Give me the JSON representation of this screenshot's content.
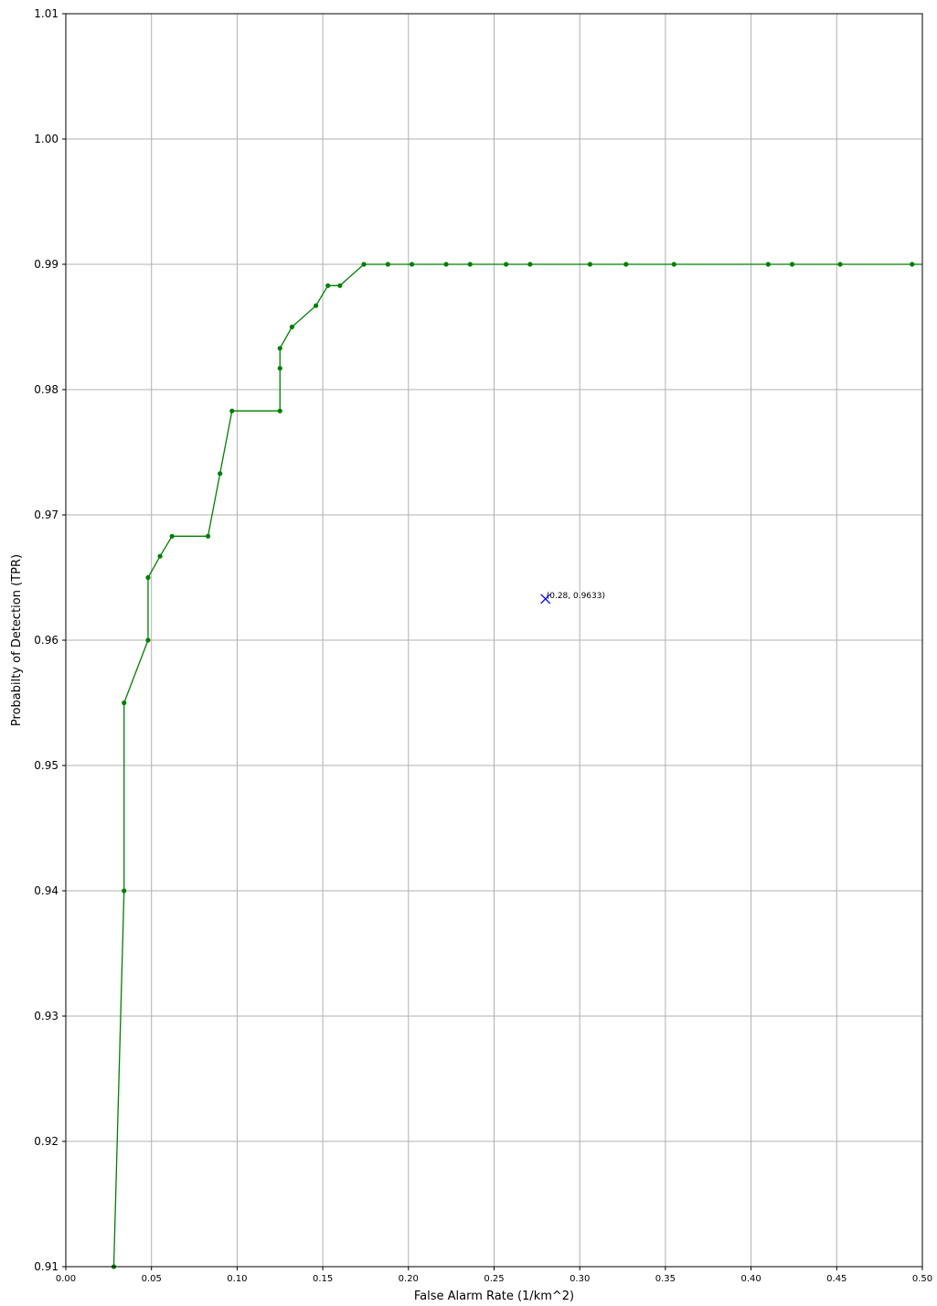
{
  "chart_data": {
    "type": "line",
    "title": "",
    "xlabel": "False Alarm Rate (1/km^2)",
    "ylabel": "Probabilty of Detection (TPR)",
    "xlim": [
      0.0,
      0.5
    ],
    "ylim": [
      0.91,
      1.01
    ],
    "grid": true,
    "x_ticks": [
      "0.00",
      "0.05",
      "0.10",
      "0.15",
      "0.20",
      "0.25",
      "0.30",
      "0.35",
      "0.40",
      "0.45",
      "0.50"
    ],
    "y_ticks": [
      "0.91",
      "0.92",
      "0.93",
      "0.94",
      "0.95",
      "0.96",
      "0.97",
      "0.98",
      "0.99",
      "1.00",
      "1.01"
    ],
    "colors": {
      "curve": "#007f00",
      "marker": "#0000ff",
      "grid": "#b0b0b0"
    },
    "series": [
      {
        "x": [
          0.028,
          0.034,
          0.034,
          0.048,
          0.048,
          0.055,
          0.062,
          0.083,
          0.09,
          0.097,
          0.125,
          0.125,
          0.125,
          0.132,
          0.146,
          0.153,
          0.16,
          0.174,
          0.188,
          0.202,
          0.222,
          0.236,
          0.257,
          0.271,
          0.306,
          0.327,
          0.355,
          0.41,
          0.424,
          0.452,
          0.494,
          0.5
        ],
        "y": [
          0.91,
          0.94,
          0.955,
          0.96,
          0.965,
          0.9667,
          0.9683,
          0.9683,
          0.9733,
          0.9783,
          0.9783,
          0.9817,
          0.9833,
          0.985,
          0.9867,
          0.9883,
          0.9883,
          0.99,
          0.99,
          0.99,
          0.99,
          0.99,
          0.99,
          0.99,
          0.99,
          0.99,
          0.99,
          0.99,
          0.99,
          0.99,
          0.99,
          0.99
        ]
      }
    ],
    "highlight": {
      "x": 0.28,
      "y": 0.9633,
      "label": "(0.28, 0.9633)"
    }
  }
}
